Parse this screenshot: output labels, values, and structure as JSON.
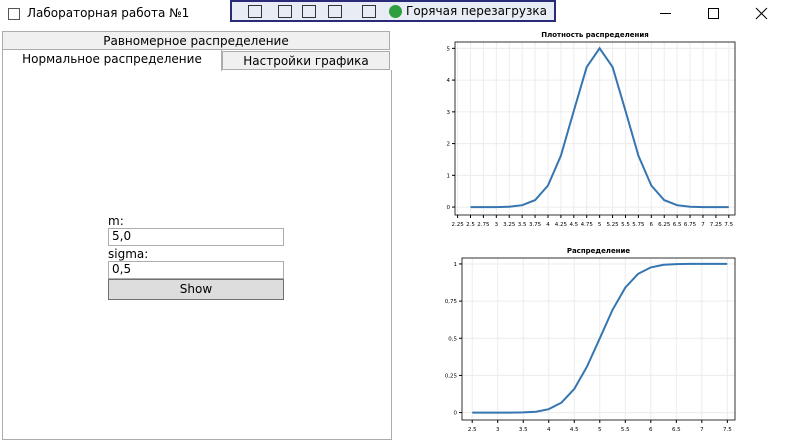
{
  "window": {
    "title": "Лабораторная работа №1",
    "toolbar": {
      "hot_reload": "Горячая перезагрузка"
    }
  },
  "tabs": [
    "Равномерное распределение",
    "Нормальное распределение",
    "Настройки графика"
  ],
  "form": {
    "m_label": "m:",
    "m_value": "5,0",
    "sigma_label": "sigma:",
    "sigma_value": "0,5",
    "button": "Show"
  },
  "chart_data": [
    {
      "type": "line",
      "title": "Плотность распределения",
      "color": "#3575b0",
      "grid": true,
      "x": [
        2.5,
        2.75,
        3,
        3.25,
        3.5,
        3.75,
        4,
        4.25,
        4.5,
        4.75,
        5,
        5.25,
        5.5,
        5.75,
        6,
        6.25,
        6.5,
        6.75,
        7,
        7.25,
        7.5
      ],
      "values": [
        0,
        0,
        0,
        0.01,
        0.06,
        0.22,
        0.68,
        1.62,
        3.03,
        4.41,
        5,
        4.41,
        3.03,
        1.62,
        0.68,
        0.22,
        0.06,
        0.01,
        0,
        0,
        0
      ],
      "xlim": [
        2.2,
        7.62
      ],
      "xticks": [
        2.25,
        2.5,
        2.75,
        3,
        3.25,
        3.5,
        3.75,
        4,
        4.25,
        4.5,
        4.75,
        5,
        5.25,
        5.5,
        5.75,
        6,
        6.25,
        6.5,
        6.75,
        7,
        7.25,
        7.5
      ],
      "ylim": [
        -0.25,
        5.2
      ],
      "yticks": [
        0,
        1,
        2,
        3,
        4,
        5
      ]
    },
    {
      "type": "line",
      "title": "Распределение",
      "color": "#3575b0",
      "grid": true,
      "x": [
        2.5,
        2.75,
        3,
        3.25,
        3.5,
        3.75,
        4,
        4.25,
        4.5,
        4.75,
        5,
        5.25,
        5.5,
        5.75,
        6,
        6.25,
        6.5,
        6.75,
        7,
        7.25,
        7.5
      ],
      "values": [
        0,
        0,
        0,
        0,
        0.001,
        0.006,
        0.023,
        0.067,
        0.159,
        0.309,
        0.5,
        0.691,
        0.841,
        0.933,
        0.977,
        0.994,
        0.999,
        1,
        1,
        1,
        1
      ],
      "xlim": [
        2.3,
        7.65
      ],
      "xticks": [
        2.5,
        3,
        3.5,
        4,
        4.5,
        5,
        5.5,
        6,
        6.5,
        7,
        7.5
      ],
      "ylim": [
        -0.05,
        1.04
      ],
      "yticks": [
        0,
        {
          "value": 0.25,
          "label": "0,25"
        },
        {
          "value": 0.5,
          "label": "0,5"
        },
        {
          "value": 0.75,
          "label": "0,75"
        },
        1
      ]
    }
  ]
}
